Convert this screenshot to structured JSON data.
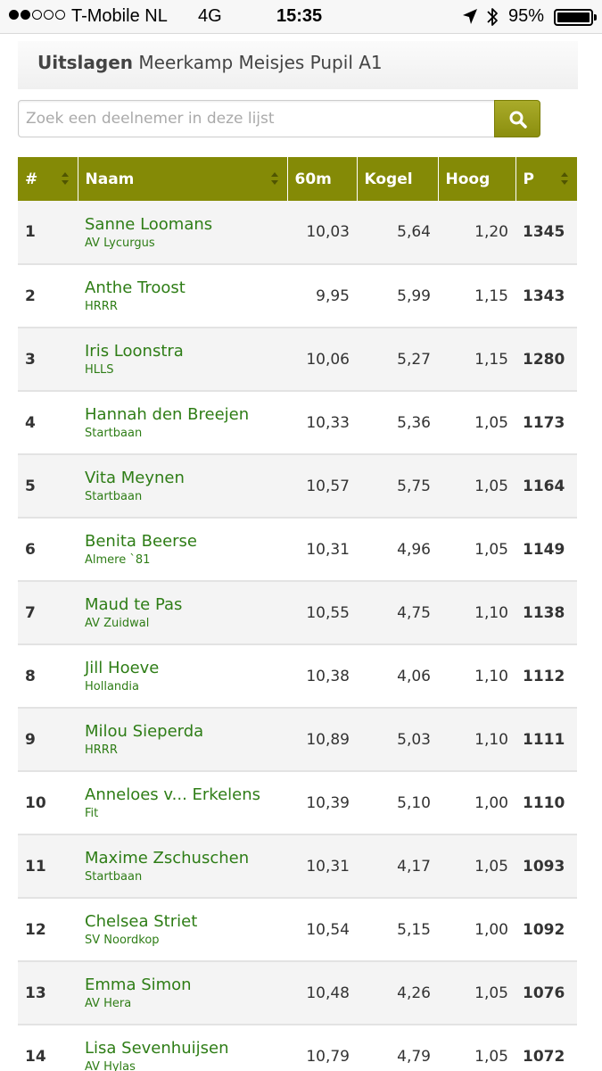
{
  "status_bar": {
    "carrier": "T-Mobile NL",
    "network": "4G",
    "time": "15:35",
    "battery_percent": "95%",
    "signal_bars_filled": 2,
    "signal_bars_total": 5
  },
  "header": {
    "title_bold": "Uitslagen",
    "title_rest": "Meerkamp Meisjes Pupil A1"
  },
  "search": {
    "placeholder": "Zoek een deelnemer in deze lijst",
    "value": "",
    "button_icon": "search-icon"
  },
  "colors": {
    "accent": "#848a06",
    "link_green": "#2e7d16",
    "row_alt": "#f4f4f4"
  },
  "table": {
    "columns": [
      "#",
      "Naam",
      "60m",
      "Kogel",
      "Hoog",
      "P"
    ],
    "rows": [
      {
        "rank": "1",
        "name": "Sanne Loomans",
        "club": "AV Lycurgus",
        "m60": "10,03",
        "kogel": "5,64",
        "hoog": "1,20",
        "points": "1345"
      },
      {
        "rank": "2",
        "name": "Anthe Troost",
        "club": "HRRR",
        "m60": "9,95",
        "kogel": "5,99",
        "hoog": "1,15",
        "points": "1343"
      },
      {
        "rank": "3",
        "name": "Iris Loonstra",
        "club": "HLLS",
        "m60": "10,06",
        "kogel": "5,27",
        "hoog": "1,15",
        "points": "1280"
      },
      {
        "rank": "4",
        "name": "Hannah den Breejen",
        "club": "Startbaan",
        "m60": "10,33",
        "kogel": "5,36",
        "hoog": "1,05",
        "points": "1173"
      },
      {
        "rank": "5",
        "name": "Vita Meynen",
        "club": "Startbaan",
        "m60": "10,57",
        "kogel": "5,75",
        "hoog": "1,05",
        "points": "1164"
      },
      {
        "rank": "6",
        "name": "Benita Beerse",
        "club": "Almere `81",
        "m60": "10,31",
        "kogel": "4,96",
        "hoog": "1,05",
        "points": "1149"
      },
      {
        "rank": "7",
        "name": "Maud te Pas",
        "club": "AV Zuidwal",
        "m60": "10,55",
        "kogel": "4,75",
        "hoog": "1,10",
        "points": "1138"
      },
      {
        "rank": "8",
        "name": "Jill Hoeve",
        "club": "Hollandia",
        "m60": "10,38",
        "kogel": "4,06",
        "hoog": "1,10",
        "points": "1112"
      },
      {
        "rank": "9",
        "name": "Milou Sieperda",
        "club": "HRRR",
        "m60": "10,89",
        "kogel": "5,03",
        "hoog": "1,10",
        "points": "1111"
      },
      {
        "rank": "10",
        "name": "Anneloes v... Erkelens",
        "club": "Fit",
        "m60": "10,39",
        "kogel": "5,10",
        "hoog": "1,00",
        "points": "1110"
      },
      {
        "rank": "11",
        "name": "Maxime Zschuschen",
        "club": "Startbaan",
        "m60": "10,31",
        "kogel": "4,17",
        "hoog": "1,05",
        "points": "1093"
      },
      {
        "rank": "12",
        "name": "Chelsea Striet",
        "club": "SV Noordkop",
        "m60": "10,54",
        "kogel": "5,15",
        "hoog": "1,00",
        "points": "1092"
      },
      {
        "rank": "13",
        "name": "Emma Simon",
        "club": "AV Hera",
        "m60": "10,48",
        "kogel": "4,26",
        "hoog": "1,05",
        "points": "1076"
      },
      {
        "rank": "14",
        "name": "Lisa Sevenhuijsen",
        "club": "AV Hylas",
        "m60": "10,79",
        "kogel": "4,79",
        "hoog": "1,05",
        "points": "1072"
      }
    ]
  }
}
